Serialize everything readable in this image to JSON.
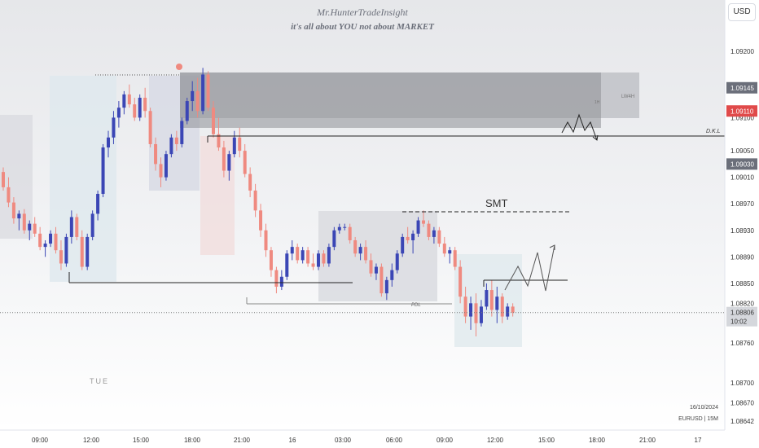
{
  "header": {
    "title": "Mr.HunterTradeInsight",
    "subtitle": "it's all about YOU not about MARKET"
  },
  "currency_button": "USD",
  "symbol_info": "EURUSD | 15M",
  "date_info": "16/10/2024",
  "annotations": {
    "smt": "SMT",
    "dkl": "D.K.L",
    "pdl": "PDL",
    "lw4h": "LW4H",
    "one_h": "1H",
    "day_label": "TUE"
  },
  "price_badges": {
    "upper_gray": "1.09145",
    "red": "1.09110",
    "lower_gray": "1.09030",
    "current": "1.08806",
    "countdown": "10:02"
  },
  "colors": {
    "bull": "#3b46b5",
    "bear": "#ef8a80",
    "badge_gray": "#6b6f7a",
    "badge_red": "#e04a4a"
  },
  "chart_data": {
    "type": "candlestick",
    "symbol": "EURUSD",
    "timeframe": "15M",
    "ylim": [
      1.0861,
      1.0929
    ],
    "y_ticks": [
      "1.09200",
      "1.09100",
      "1.09050",
      "1.09010",
      "1.08970",
      "1.08930",
      "1.08890",
      "1.08850",
      "1.08820",
      "1.08760",
      "1.08700",
      "1.08670",
      "1.08642"
    ],
    "y_tick_values": [
      1.092,
      1.091,
      1.0905,
      1.0901,
      1.0897,
      1.0893,
      1.0889,
      1.0885,
      1.0882,
      1.0876,
      1.087,
      1.0867,
      1.08642
    ],
    "x_ticks": [
      "09:00",
      "12:00",
      "15:00",
      "18:00",
      "21:00",
      "16",
      "03:00",
      "06:00",
      "09:00",
      "12:00",
      "15:00",
      "18:00",
      "21:00",
      "17"
    ],
    "candles": [
      [
        1.09018,
        1.09025,
        1.0899,
        1.08995
      ],
      [
        1.08995,
        1.0901,
        1.08965,
        1.08972
      ],
      [
        1.08972,
        1.0898,
        1.0894,
        1.08948
      ],
      [
        1.08948,
        1.0896,
        1.0893,
        1.08955
      ],
      [
        1.08955,
        1.08962,
        1.08925,
        1.0893
      ],
      [
        1.0893,
        1.08945,
        1.08915,
        1.0894
      ],
      [
        1.0894,
        1.0895,
        1.0892,
        1.08925
      ],
      [
        1.08925,
        1.08935,
        1.089,
        1.08905
      ],
      [
        1.08905,
        1.08915,
        1.0889,
        1.0891
      ],
      [
        1.0891,
        1.0893,
        1.08905,
        1.08925
      ],
      [
        1.08925,
        1.08935,
        1.08895,
        1.089
      ],
      [
        1.089,
        1.08915,
        1.0887,
        1.0888
      ],
      [
        1.0888,
        1.08925,
        1.08875,
        1.0892
      ],
      [
        1.0892,
        1.0896,
        1.0891,
        1.0895
      ],
      [
        1.0895,
        1.08955,
        1.08915,
        1.0892
      ],
      [
        1.0892,
        1.0893,
        1.0887,
        1.08875
      ],
      [
        1.08875,
        1.08925,
        1.0887,
        1.0892
      ],
      [
        1.0892,
        1.0896,
        1.08915,
        1.08955
      ],
      [
        1.08955,
        1.0899,
        1.08945,
        1.08985
      ],
      [
        1.08985,
        1.0906,
        1.0898,
        1.09055
      ],
      [
        1.09055,
        1.0908,
        1.0904,
        1.0907
      ],
      [
        1.0907,
        1.0911,
        1.0906,
        1.091
      ],
      [
        1.091,
        1.09125,
        1.09085,
        1.09115
      ],
      [
        1.09115,
        1.0914,
        1.09105,
        1.09135
      ],
      [
        1.09135,
        1.0915,
        1.09115,
        1.0912
      ],
      [
        1.0912,
        1.0913,
        1.09095,
        1.091
      ],
      [
        1.091,
        1.09135,
        1.09095,
        1.0913
      ],
      [
        1.0913,
        1.09145,
        1.091,
        1.0911
      ],
      [
        1.0911,
        1.09115,
        1.09055,
        1.0906
      ],
      [
        1.0906,
        1.0907,
        1.0902,
        1.0903
      ],
      [
        1.0903,
        1.0904,
        1.08995,
        1.0901
      ],
      [
        1.0901,
        1.0905,
        1.09005,
        1.09045
      ],
      [
        1.09045,
        1.09075,
        1.0904,
        1.0907
      ],
      [
        1.0907,
        1.0908,
        1.0905,
        1.0906
      ],
      [
        1.0906,
        1.091,
        1.09055,
        1.09095
      ],
      [
        1.09095,
        1.0913,
        1.0909,
        1.09125
      ],
      [
        1.09125,
        1.09155,
        1.0911,
        1.0914
      ],
      [
        1.0914,
        1.0916,
        1.091,
        1.0911
      ],
      [
        1.0911,
        1.09175,
        1.09105,
        1.09165
      ],
      [
        1.09165,
        1.0917,
        1.0911,
        1.09115
      ],
      [
        1.09115,
        1.09125,
        1.0907,
        1.09075
      ],
      [
        1.09075,
        1.091,
        1.0905,
        1.09055
      ],
      [
        1.09055,
        1.09065,
        1.0901,
        1.0902
      ],
      [
        1.0902,
        1.0905,
        1.09005,
        1.09045
      ],
      [
        1.09045,
        1.0908,
        1.0904,
        1.0907
      ],
      [
        1.0907,
        1.09085,
        1.0904,
        1.0905
      ],
      [
        1.0905,
        1.0906,
        1.0901,
        1.09015
      ],
      [
        1.09015,
        1.09025,
        1.0898,
        1.0899
      ],
      [
        1.0899,
        1.09,
        1.0895,
        1.0896
      ],
      [
        1.0896,
        1.0897,
        1.0892,
        1.0893
      ],
      [
        1.0893,
        1.0894,
        1.0889,
        1.089
      ],
      [
        1.089,
        1.08905,
        1.0886,
        1.0887
      ],
      [
        1.0887,
        1.08875,
        1.08835,
        1.08845
      ],
      [
        1.08845,
        1.0887,
        1.0884,
        1.0886
      ],
      [
        1.0886,
        1.089,
        1.08855,
        1.08895
      ],
      [
        1.08895,
        1.08915,
        1.08885,
        1.08905
      ],
      [
        1.08905,
        1.0891,
        1.0888,
        1.08885
      ],
      [
        1.08885,
        1.08905,
        1.0888,
        1.089
      ],
      [
        1.089,
        1.08905,
        1.08875,
        1.0888
      ],
      [
        1.0888,
        1.08895,
        1.0887,
        1.08875
      ],
      [
        1.08875,
        1.089,
        1.0887,
        1.08895
      ],
      [
        1.08895,
        1.089,
        1.08875,
        1.0888
      ],
      [
        1.0888,
        1.0891,
        1.08875,
        1.08905
      ],
      [
        1.08905,
        1.08935,
        1.089,
        1.0893
      ],
      [
        1.0893,
        1.0894,
        1.08925,
        1.08935
      ],
      [
        1.08935,
        1.0894,
        1.0893,
        1.08935
      ],
      [
        1.08935,
        1.0894,
        1.0891,
        1.08915
      ],
      [
        1.08915,
        1.0892,
        1.0889,
        1.08895
      ],
      [
        1.08895,
        1.0891,
        1.08885,
        1.08905
      ],
      [
        1.08905,
        1.08915,
        1.0888,
        1.08885
      ],
      [
        1.08885,
        1.08895,
        1.0886,
        1.08865
      ],
      [
        1.08865,
        1.0888,
        1.08855,
        1.08875
      ],
      [
        1.08875,
        1.0888,
        1.0883,
        1.08835
      ],
      [
        1.08835,
        1.0886,
        1.08825,
        1.08855
      ],
      [
        1.08855,
        1.0888,
        1.08845,
        1.0887
      ],
      [
        1.0887,
        1.089,
        1.08865,
        1.08895
      ],
      [
        1.08895,
        1.08925,
        1.0889,
        1.0892
      ],
      [
        1.0892,
        1.08935,
        1.0891,
        1.08915
      ],
      [
        1.08915,
        1.0893,
        1.08895,
        1.08925
      ],
      [
        1.08925,
        1.0895,
        1.0892,
        1.08945
      ],
      [
        1.08945,
        1.0896,
        1.08935,
        1.0894
      ],
      [
        1.0894,
        1.08945,
        1.08915,
        1.0892
      ],
      [
        1.0892,
        1.08935,
        1.0891,
        1.0893
      ],
      [
        1.0893,
        1.08935,
        1.08905,
        1.0891
      ],
      [
        1.0891,
        1.0892,
        1.0889,
        1.08895
      ],
      [
        1.08895,
        1.08905,
        1.0888,
        1.089
      ],
      [
        1.089,
        1.08905,
        1.0887,
        1.08875
      ],
      [
        1.08875,
        1.08885,
        1.0882,
        1.0883
      ],
      [
        1.0883,
        1.08845,
        1.0879,
        1.088
      ],
      [
        1.088,
        1.0883,
        1.0878,
        1.0882
      ],
      [
        1.0882,
        1.08835,
        1.0877,
        1.0879
      ],
      [
        1.0879,
        1.08825,
        1.08785,
        1.08815
      ],
      [
        1.08815,
        1.0885,
        1.0881,
        1.0884
      ],
      [
        1.0884,
        1.08855,
        1.088,
        1.0881
      ],
      [
        1.0881,
        1.08845,
        1.0879,
        1.0883
      ],
      [
        1.0883,
        1.08835,
        1.0879,
        1.088
      ],
      [
        1.088,
        1.0882,
        1.08795,
        1.08815
      ],
      [
        1.08815,
        1.0882,
        1.088,
        1.08806
      ]
    ]
  }
}
